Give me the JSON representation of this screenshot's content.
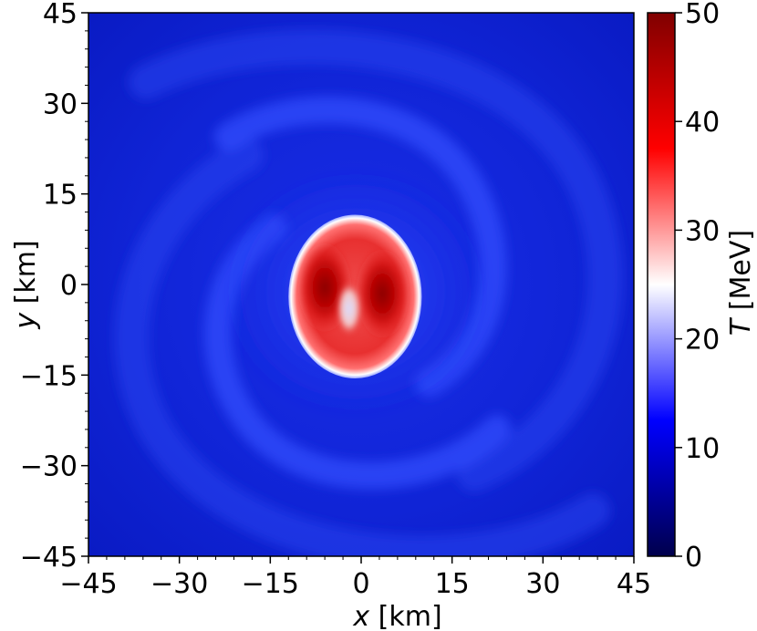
{
  "chart_data": {
    "type": "heatmap",
    "xlabel_var": "x",
    "xlabel_unit": " [km]",
    "ylabel_var": "y",
    "ylabel_unit": " [km]",
    "colorbar_label_var": "T",
    "colorbar_label_unit": " [MeV]",
    "xlim": [
      -45,
      45
    ],
    "ylim": [
      -45,
      45
    ],
    "x_ticks": [
      -45,
      -30,
      -15,
      0,
      15,
      30,
      45
    ],
    "y_ticks": [
      -45,
      -30,
      -15,
      0,
      15,
      30,
      45
    ],
    "x_tick_labels": [
      "−45",
      "−30",
      "−15",
      "0",
      "15",
      "30",
      "45"
    ],
    "y_tick_labels": [
      "−45",
      "−30",
      "−15",
      "0",
      "15",
      "30",
      "45"
    ],
    "colorbar_range": [
      0,
      50
    ],
    "colorbar_ticks": [
      0,
      10,
      20,
      30,
      40,
      50
    ],
    "colorbar_tick_labels": [
      "0",
      "10",
      "20",
      "30",
      "40",
      "50"
    ],
    "colormap": "seismic",
    "colormap_colors": [
      "#00004c",
      "#0000ff",
      "#ffffff",
      "#ff0000",
      "#800000"
    ],
    "background_T": 7,
    "core": {
      "center": [
        -1,
        -2
      ],
      "semi_axes": [
        11,
        13.5
      ],
      "rim_T": 26,
      "interior_T": 36
    },
    "hot_spots": [
      {
        "center": [
          -6,
          -0.5
        ],
        "T": 46
      },
      {
        "center": [
          3.5,
          -1.5
        ],
        "T": 46
      }
    ],
    "cool_center": {
      "center": [
        -2,
        -4
      ],
      "T": 20
    },
    "spiral_arms": [
      {
        "description_T": 12
      },
      {
        "description_T": 12
      }
    ]
  }
}
